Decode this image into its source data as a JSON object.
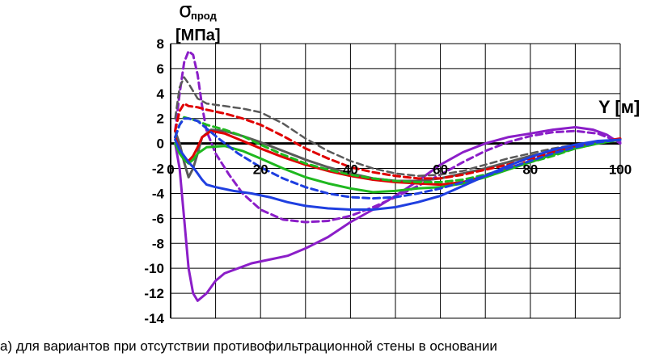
{
  "caption": "а) для вариантов при отсутствии противофильтрационной стены в основании",
  "chart_data": {
    "type": "line",
    "ylabel_symbol": "σ",
    "ylabel_subscript": "прод",
    "ylabel_unit": "[МПа]",
    "xlabel": "Y [м]",
    "xlim": [
      0,
      100
    ],
    "ylim": [
      -14,
      8
    ],
    "x_ticks": [
      0,
      20,
      40,
      60,
      80,
      100
    ],
    "y_ticks": [
      8,
      6,
      4,
      2,
      0,
      -2,
      -4,
      -6,
      -8,
      -10,
      -12,
      -14
    ],
    "grid": true,
    "series": [
      {
        "color": "#8B1EC8",
        "dash": "solid",
        "width": 3,
        "points": [
          [
            1,
            0
          ],
          [
            2,
            -2
          ],
          [
            3,
            -6
          ],
          [
            4,
            -10
          ],
          [
            5,
            -12
          ],
          [
            6,
            -12.6
          ],
          [
            8,
            -12
          ],
          [
            10,
            -11
          ],
          [
            12,
            -10.4
          ],
          [
            15,
            -10
          ],
          [
            18,
            -9.6
          ],
          [
            22,
            -9.3
          ],
          [
            26,
            -9
          ],
          [
            30,
            -8.4
          ],
          [
            35,
            -7.5
          ],
          [
            40,
            -6.3
          ],
          [
            45,
            -5.3
          ],
          [
            50,
            -4.2
          ],
          [
            55,
            -3
          ],
          [
            60,
            -1.7
          ],
          [
            65,
            -0.7
          ],
          [
            70,
            0
          ],
          [
            75,
            0.5
          ],
          [
            80,
            0.8
          ],
          [
            85,
            1.1
          ],
          [
            90,
            1.3
          ],
          [
            94,
            1.1
          ],
          [
            97,
            0.7
          ],
          [
            100,
            0
          ]
        ]
      },
      {
        "color": "#8B1EC8",
        "dash": "dashed",
        "width": 3,
        "points": [
          [
            1,
            1
          ],
          [
            2,
            4
          ],
          [
            3,
            6.5
          ],
          [
            4,
            7.4
          ],
          [
            5,
            7.1
          ],
          [
            6,
            5.5
          ],
          [
            7,
            3
          ],
          [
            8,
            1
          ],
          [
            10,
            -0.8
          ],
          [
            13,
            -2.5
          ],
          [
            16,
            -4
          ],
          [
            20,
            -5.3
          ],
          [
            25,
            -6.1
          ],
          [
            30,
            -6.3
          ],
          [
            35,
            -6.2
          ],
          [
            40,
            -5.8
          ],
          [
            45,
            -5.1
          ],
          [
            50,
            -4.3
          ],
          [
            55,
            -3.4
          ],
          [
            60,
            -2.5
          ],
          [
            65,
            -1.5
          ],
          [
            70,
            -0.6
          ],
          [
            75,
            0.1
          ],
          [
            80,
            0.6
          ],
          [
            85,
            0.9
          ],
          [
            90,
            1
          ],
          [
            95,
            0.8
          ],
          [
            100,
            0.1
          ]
        ]
      },
      {
        "color": "#595959",
        "dash": "dashed",
        "width": 2.5,
        "points": [
          [
            1,
            2
          ],
          [
            2,
            4.5
          ],
          [
            3,
            5.3
          ],
          [
            4,
            4.8
          ],
          [
            6,
            3.6
          ],
          [
            8,
            3.2
          ],
          [
            12,
            3
          ],
          [
            16,
            2.8
          ],
          [
            20,
            2.5
          ],
          [
            25,
            1.6
          ],
          [
            30,
            0.4
          ],
          [
            35,
            -0.6
          ],
          [
            40,
            -1.4
          ],
          [
            45,
            -2
          ],
          [
            50,
            -2.4
          ],
          [
            55,
            -2.6
          ],
          [
            60,
            -2.5
          ],
          [
            65,
            -2.2
          ],
          [
            70,
            -1.7
          ],
          [
            75,
            -1.2
          ],
          [
            80,
            -0.8
          ],
          [
            85,
            -0.4
          ],
          [
            90,
            -0.1
          ],
          [
            95,
            0.1
          ],
          [
            100,
            0.3
          ]
        ]
      },
      {
        "color": "#595959",
        "dash": "solid",
        "width": 3,
        "points": [
          [
            1,
            1
          ],
          [
            2,
            0
          ],
          [
            3,
            -1.5
          ],
          [
            4,
            -2.7
          ],
          [
            5,
            -2
          ],
          [
            6,
            -0.8
          ],
          [
            7,
            0.5
          ],
          [
            9,
            1.1
          ],
          [
            12,
            1
          ],
          [
            16,
            0.6
          ],
          [
            20,
            0.1
          ],
          [
            25,
            -0.6
          ],
          [
            30,
            -1.3
          ],
          [
            35,
            -1.9
          ],
          [
            40,
            -2.4
          ],
          [
            45,
            -2.8
          ],
          [
            50,
            -3
          ],
          [
            55,
            -3
          ],
          [
            60,
            -2.8
          ],
          [
            65,
            -2.4
          ],
          [
            70,
            -2
          ],
          [
            75,
            -1.5
          ],
          [
            80,
            -1
          ],
          [
            85,
            -0.6
          ],
          [
            90,
            -0.2
          ],
          [
            95,
            0.1
          ],
          [
            100,
            0.3
          ]
        ]
      },
      {
        "color": "#E00000",
        "dash": "dashed",
        "width": 3,
        "points": [
          [
            1,
            1
          ],
          [
            2,
            2.6
          ],
          [
            3,
            3.2
          ],
          [
            4,
            3
          ],
          [
            6,
            2.9
          ],
          [
            8,
            2.7
          ],
          [
            12,
            2.4
          ],
          [
            16,
            2
          ],
          [
            20,
            1.5
          ],
          [
            25,
            0.6
          ],
          [
            30,
            -0.4
          ],
          [
            35,
            -1.2
          ],
          [
            40,
            -1.9
          ],
          [
            45,
            -2.3
          ],
          [
            50,
            -2.6
          ],
          [
            55,
            -2.8
          ],
          [
            60,
            -2.8
          ],
          [
            65,
            -2.5
          ],
          [
            70,
            -2.1
          ],
          [
            75,
            -1.7
          ],
          [
            80,
            -1.2
          ],
          [
            85,
            -0.7
          ],
          [
            90,
            -0.3
          ],
          [
            95,
            0.1
          ],
          [
            100,
            0.3
          ]
        ]
      },
      {
        "color": "#E00000",
        "dash": "solid",
        "width": 3,
        "points": [
          [
            1,
            0.5
          ],
          [
            2,
            -0.5
          ],
          [
            3,
            -1.2
          ],
          [
            4,
            -1.4
          ],
          [
            5,
            -1
          ],
          [
            6,
            -0.3
          ],
          [
            7,
            0.5
          ],
          [
            9,
            1
          ],
          [
            12,
            0.8
          ],
          [
            16,
            0.2
          ],
          [
            20,
            -0.4
          ],
          [
            25,
            -1.1
          ],
          [
            30,
            -1.7
          ],
          [
            35,
            -2.2
          ],
          [
            40,
            -2.6
          ],
          [
            45,
            -2.9
          ],
          [
            50,
            -3.1
          ],
          [
            55,
            -3.2
          ],
          [
            60,
            -3.3
          ],
          [
            65,
            -3.1
          ],
          [
            70,
            -2.6
          ],
          [
            75,
            -2
          ],
          [
            80,
            -1.4
          ],
          [
            85,
            -0.8
          ],
          [
            90,
            -0.3
          ],
          [
            95,
            0.1
          ],
          [
            100,
            0.4
          ]
        ]
      },
      {
        "color": "#1FB81F",
        "dash": "dashed",
        "width": 3,
        "points": [
          [
            1,
            0.5
          ],
          [
            2,
            1.5
          ],
          [
            3,
            2.1
          ],
          [
            4,
            2
          ],
          [
            6,
            1.8
          ],
          [
            8,
            1.5
          ],
          [
            12,
            1.1
          ],
          [
            16,
            0.6
          ],
          [
            20,
            -0.1
          ],
          [
            25,
            -0.9
          ],
          [
            30,
            -1.6
          ],
          [
            35,
            -2.1
          ],
          [
            40,
            -2.5
          ],
          [
            45,
            -2.8
          ],
          [
            50,
            -3
          ],
          [
            55,
            -3.1
          ],
          [
            60,
            -3.1
          ],
          [
            65,
            -2.9
          ],
          [
            70,
            -2.5
          ],
          [
            75,
            -2
          ],
          [
            80,
            -1.5
          ],
          [
            85,
            -1
          ],
          [
            90,
            -0.4
          ],
          [
            95,
            0
          ],
          [
            100,
            0.3
          ]
        ]
      },
      {
        "color": "#1FB81F",
        "dash": "solid",
        "width": 3,
        "points": [
          [
            1,
            0
          ],
          [
            2,
            -0.8
          ],
          [
            3,
            -1.3
          ],
          [
            4,
            -1.6
          ],
          [
            5,
            -1.3
          ],
          [
            6,
            -0.8
          ],
          [
            8,
            -0.3
          ],
          [
            12,
            -0.2
          ],
          [
            16,
            -0.6
          ],
          [
            20,
            -1.2
          ],
          [
            25,
            -2
          ],
          [
            30,
            -2.7
          ],
          [
            35,
            -3.2
          ],
          [
            40,
            -3.6
          ],
          [
            45,
            -3.9
          ],
          [
            50,
            -3.8
          ],
          [
            55,
            -3.6
          ],
          [
            60,
            -3.5
          ],
          [
            65,
            -3.2
          ],
          [
            70,
            -2.7
          ],
          [
            75,
            -2.1
          ],
          [
            80,
            -1.5
          ],
          [
            85,
            -0.9
          ],
          [
            90,
            -0.4
          ],
          [
            95,
            0
          ],
          [
            100,
            0.3
          ]
        ]
      },
      {
        "color": "#1F3FE0",
        "dash": "dashed",
        "width": 3,
        "points": [
          [
            1,
            0.5
          ],
          [
            2,
            1.5
          ],
          [
            3,
            2
          ],
          [
            4,
            2
          ],
          [
            6,
            1.8
          ],
          [
            8,
            1.2
          ],
          [
            11,
            0.3
          ],
          [
            15,
            -0.8
          ],
          [
            20,
            -1.9
          ],
          [
            25,
            -2.8
          ],
          [
            30,
            -3.5
          ],
          [
            35,
            -4
          ],
          [
            40,
            -4.3
          ],
          [
            45,
            -4.4
          ],
          [
            50,
            -4.3
          ],
          [
            55,
            -4
          ],
          [
            60,
            -3.6
          ],
          [
            65,
            -3.1
          ],
          [
            70,
            -2.6
          ],
          [
            75,
            -2
          ],
          [
            80,
            -1.4
          ],
          [
            85,
            -0.8
          ],
          [
            90,
            -0.3
          ],
          [
            95,
            0.1
          ],
          [
            100,
            0.3
          ]
        ]
      },
      {
        "color": "#1F3FE0",
        "dash": "solid",
        "width": 3,
        "points": [
          [
            1,
            0.3
          ],
          [
            2,
            -0.5
          ],
          [
            3,
            -1
          ],
          [
            4,
            -1.5
          ],
          [
            5,
            -1.9
          ],
          [
            6,
            -2.4
          ],
          [
            7,
            -2.9
          ],
          [
            8,
            -3.3
          ],
          [
            10,
            -3.5
          ],
          [
            14,
            -3.8
          ],
          [
            18,
            -4
          ],
          [
            22,
            -4.3
          ],
          [
            26,
            -4.7
          ],
          [
            30,
            -5
          ],
          [
            35,
            -5.2
          ],
          [
            40,
            -5.3
          ],
          [
            45,
            -5.3
          ],
          [
            50,
            -5.1
          ],
          [
            55,
            -4.7
          ],
          [
            60,
            -4.2
          ],
          [
            65,
            -3.4
          ],
          [
            70,
            -2.6
          ],
          [
            75,
            -1.8
          ],
          [
            80,
            -1.1
          ],
          [
            85,
            -0.5
          ],
          [
            90,
            -0.1
          ],
          [
            95,
            0.2
          ],
          [
            100,
            0.3
          ]
        ]
      }
    ]
  }
}
